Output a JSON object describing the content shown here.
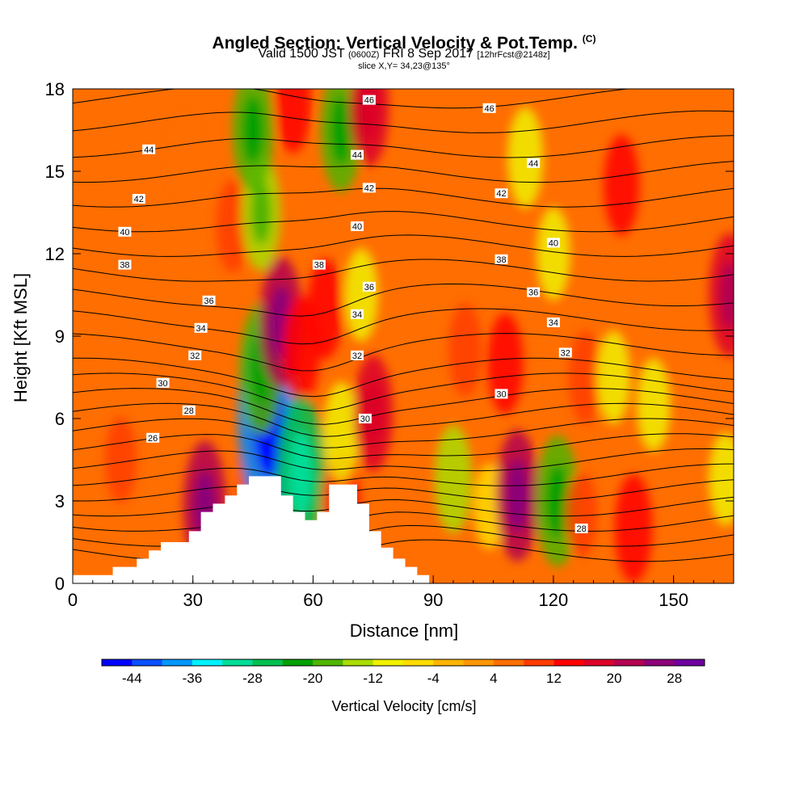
{
  "header": {
    "title": "Angled Section: Vertical Velocity & Pot.Temp.",
    "title_units": "(C)",
    "valid_main": "Valid 1500 JST",
    "valid_utc": "(0600Z)",
    "valid_date": "FRI 8 Sep 2017",
    "forecast_tag": "[12hrFcst@2148z]",
    "slice": "slice X,Y= 34,23@135°"
  },
  "chart_data": {
    "type": "heatmap",
    "title": "Angled Section: Vertical Velocity & Pot.Temp. (C)",
    "xlabel": "Distance [nm]",
    "ylabel": "Height [Kft MSL]",
    "xlim": [
      0,
      165
    ],
    "ylim": [
      0,
      18
    ],
    "x_ticks": [
      0,
      30,
      60,
      90,
      120,
      150
    ],
    "x_tick_labels": [
      "0",
      "30",
      "60",
      "90",
      "120",
      "150"
    ],
    "y_ticks": [
      0,
      3,
      6,
      9,
      12,
      15,
      18
    ],
    "y_tick_labels": [
      "0",
      "3",
      "6",
      "9",
      "12",
      "15",
      "18"
    ],
    "colorbar": {
      "label": "Vertical Velocity [cm/s]",
      "tick_labels": [
        "-44",
        "-36",
        "-28",
        "-20",
        "-12",
        "-4",
        "4",
        "12",
        "20",
        "28"
      ],
      "tick_values": [
        -44,
        -36,
        -28,
        -20,
        -12,
        -4,
        4,
        12,
        20,
        28
      ],
      "colors": [
        "#0000ff",
        "#0a50ff",
        "#0096ff",
        "#00f0ff",
        "#00dc96",
        "#00c050",
        "#00a000",
        "#50b400",
        "#aadc00",
        "#f0f000",
        "#ffdc00",
        "#ffb400",
        "#ff9600",
        "#ff6e00",
        "#ff3c00",
        "#ff0000",
        "#dc0028",
        "#b40050",
        "#8c0078",
        "#6e00a0"
      ]
    },
    "velocity_features": [
      {
        "x": 33,
        "y": 2.8,
        "w": 20
      },
      {
        "x": 46,
        "y": 4.3,
        "w": 14
      },
      {
        "x": 49,
        "y": 6.0,
        "w": -40
      },
      {
        "x": 47,
        "y": 7.8,
        "w": -20
      },
      {
        "x": 52,
        "y": 9.5,
        "w": 20
      },
      {
        "x": 57,
        "y": 8.5,
        "w": 14
      },
      {
        "x": 57,
        "y": 4.0,
        "w": -26
      },
      {
        "x": 67,
        "y": 2.8,
        "w": 14
      },
      {
        "x": 67,
        "y": 5.5,
        "w": -12
      },
      {
        "x": 75,
        "y": 6.2,
        "w": 16
      },
      {
        "x": 40,
        "y": 13.0,
        "w": 10
      },
      {
        "x": 47,
        "y": 13.5,
        "w": -16
      },
      {
        "x": 45,
        "y": 16.5,
        "w": -18
      },
      {
        "x": 55,
        "y": 17.5,
        "w": 12
      },
      {
        "x": 67,
        "y": 16.5,
        "w": -18
      },
      {
        "x": 74,
        "y": 17.3,
        "w": 16
      },
      {
        "x": 63,
        "y": 10.0,
        "w": 12
      },
      {
        "x": 72,
        "y": 10.5,
        "w": -10
      },
      {
        "x": 95,
        "y": 3.8,
        "w": -14
      },
      {
        "x": 104,
        "y": 2.8,
        "w": -8
      },
      {
        "x": 111,
        "y": 3.2,
        "w": 20
      },
      {
        "x": 108,
        "y": 8.0,
        "w": 12
      },
      {
        "x": 98,
        "y": 8.5,
        "w": 10
      },
      {
        "x": 121,
        "y": 3.0,
        "w": -20
      },
      {
        "x": 127,
        "y": 2.5,
        "w": 8
      },
      {
        "x": 128,
        "y": 7.5,
        "w": 10
      },
      {
        "x": 135,
        "y": 7.5,
        "w": -10
      },
      {
        "x": 140,
        "y": 2.0,
        "w": 14
      },
      {
        "x": 145,
        "y": 6.5,
        "w": -10
      },
      {
        "x": 113,
        "y": 15.5,
        "w": -12
      },
      {
        "x": 120,
        "y": 12.0,
        "w": -10
      },
      {
        "x": 137,
        "y": 14.5,
        "w": 12
      },
      {
        "x": 164,
        "y": 10.5,
        "w": 18
      },
      {
        "x": 163,
        "y": 3.8,
        "w": -10
      },
      {
        "x": 12,
        "y": 4.5,
        "w": 8
      },
      {
        "x": 28,
        "y": 15.5,
        "w": 6
      }
    ],
    "theta_labels": [
      {
        "value": "26",
        "x": 20,
        "y": 5.3
      },
      {
        "value": "28",
        "x": 29,
        "y": 6.3
      },
      {
        "value": "30",
        "x": 22.5,
        "y": 7.3
      },
      {
        "value": "32",
        "x": 30.5,
        "y": 8.3
      },
      {
        "value": "34",
        "x": 32,
        "y": 9.3
      },
      {
        "value": "36",
        "x": 34,
        "y": 10.3
      },
      {
        "value": "38",
        "x": 13,
        "y": 11.6
      },
      {
        "value": "40",
        "x": 13,
        "y": 12.8
      },
      {
        "value": "42",
        "x": 16.5,
        "y": 14.0
      },
      {
        "value": "44",
        "x": 19,
        "y": 15.8
      },
      {
        "value": "30",
        "x": 73,
        "y": 6.0
      },
      {
        "value": "32",
        "x": 71,
        "y": 8.3
      },
      {
        "value": "34",
        "x": 71,
        "y": 9.8
      },
      {
        "value": "36",
        "x": 74,
        "y": 10.8
      },
      {
        "value": "38",
        "x": 61.5,
        "y": 11.6
      },
      {
        "value": "40",
        "x": 71,
        "y": 13.0
      },
      {
        "value": "42",
        "x": 74,
        "y": 14.4
      },
      {
        "value": "44",
        "x": 71,
        "y": 15.6
      },
      {
        "value": "46",
        "x": 74,
        "y": 17.6
      },
      {
        "value": "30",
        "x": 107,
        "y": 6.9
      },
      {
        "value": "32",
        "x": 123,
        "y": 8.4
      },
      {
        "value": "34",
        "x": 120,
        "y": 9.5
      },
      {
        "value": "36",
        "x": 115,
        "y": 10.6
      },
      {
        "value": "38",
        "x": 107,
        "y": 11.8
      },
      {
        "value": "40",
        "x": 120,
        "y": 12.4
      },
      {
        "value": "42",
        "x": 107,
        "y": 14.2
      },
      {
        "value": "44",
        "x": 115,
        "y": 15.3
      },
      {
        "value": "46",
        "x": 104,
        "y": 17.3
      },
      {
        "value": "28",
        "x": 127,
        "y": 2.0
      }
    ],
    "terrain": [
      [
        0,
        0.3
      ],
      [
        10,
        0.3
      ],
      [
        10,
        0.6
      ],
      [
        16,
        0.6
      ],
      [
        16,
        0.9
      ],
      [
        19,
        0.9
      ],
      [
        19,
        1.2
      ],
      [
        22,
        1.2
      ],
      [
        22,
        1.5
      ],
      [
        29,
        1.5
      ],
      [
        29,
        1.9
      ],
      [
        32,
        1.9
      ],
      [
        32,
        2.6
      ],
      [
        35,
        2.6
      ],
      [
        35,
        2.9
      ],
      [
        38,
        2.9
      ],
      [
        38,
        3.2
      ],
      [
        41,
        3.2
      ],
      [
        41,
        3.6
      ],
      [
        44,
        3.6
      ],
      [
        44,
        3.9
      ],
      [
        52,
        3.9
      ],
      [
        52,
        3.2
      ],
      [
        55,
        3.2
      ],
      [
        55,
        2.6
      ],
      [
        58,
        2.6
      ],
      [
        58,
        2.3
      ],
      [
        61,
        2.3
      ],
      [
        61,
        2.6
      ],
      [
        64,
        2.6
      ],
      [
        64,
        3.6
      ],
      [
        71,
        3.6
      ],
      [
        71,
        2.9
      ],
      [
        74,
        2.9
      ],
      [
        74,
        1.9
      ],
      [
        77,
        1.9
      ],
      [
        77,
        1.3
      ],
      [
        80,
        1.3
      ],
      [
        80,
        0.9
      ],
      [
        83,
        0.9
      ],
      [
        83,
        0.6
      ],
      [
        86,
        0.6
      ],
      [
        86,
        0.3
      ],
      [
        89,
        0.3
      ],
      [
        89,
        0
      ],
      [
        0,
        0
      ]
    ]
  }
}
